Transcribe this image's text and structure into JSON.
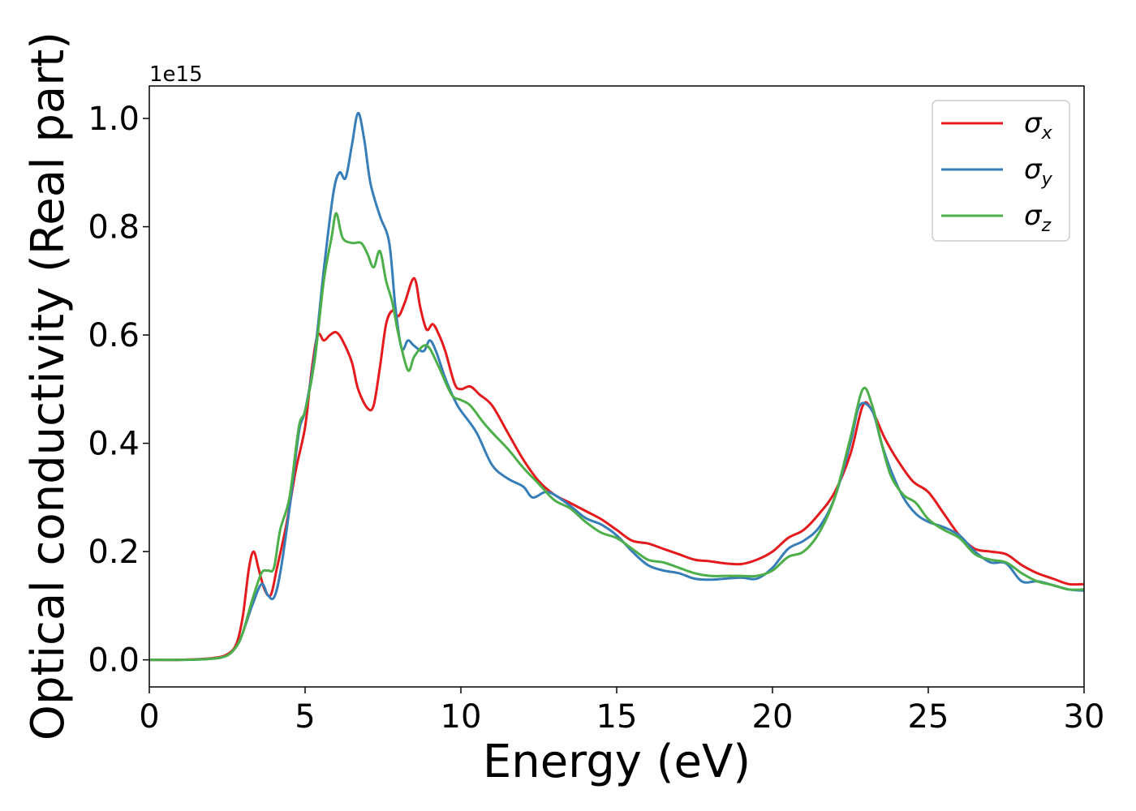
{
  "chart_data": {
    "type": "line",
    "title": "",
    "xlabel": "Energy (eV)",
    "ylabel": "Optical conductivity (Real part)",
    "y_offset_label": "1e15",
    "xlim": [
      0,
      30
    ],
    "ylim": [
      -0.05,
      1.06
    ],
    "xticks": [
      0,
      5,
      10,
      15,
      20,
      25,
      30
    ],
    "xtick_labels": [
      "0",
      "5",
      "10",
      "15",
      "20",
      "25",
      "30"
    ],
    "yticks": [
      0.0,
      0.2,
      0.4,
      0.6,
      0.8,
      1.0
    ],
    "ytick_labels": [
      "0.0",
      "0.2",
      "0.4",
      "0.6",
      "0.8",
      "1.0"
    ],
    "grid": false,
    "legend_position": "top-right",
    "series": [
      {
        "name": "σx",
        "symbol": "σ",
        "subscript": "x",
        "color": "#e41a1c",
        "points": [
          [
            0,
            0
          ],
          [
            1,
            0
          ],
          [
            2,
            0.003
          ],
          [
            2.5,
            0.01
          ],
          [
            2.8,
            0.03
          ],
          [
            3.0,
            0.08
          ],
          [
            3.2,
            0.17
          ],
          [
            3.35,
            0.2
          ],
          [
            3.5,
            0.17
          ],
          [
            3.7,
            0.13
          ],
          [
            3.9,
            0.12
          ],
          [
            4.1,
            0.17
          ],
          [
            4.4,
            0.25
          ],
          [
            4.7,
            0.35
          ],
          [
            5.0,
            0.43
          ],
          [
            5.2,
            0.53
          ],
          [
            5.4,
            0.6
          ],
          [
            5.6,
            0.59
          ],
          [
            5.8,
            0.6
          ],
          [
            6.0,
            0.605
          ],
          [
            6.2,
            0.59
          ],
          [
            6.5,
            0.55
          ],
          [
            6.7,
            0.5
          ],
          [
            7.0,
            0.465
          ],
          [
            7.2,
            0.47
          ],
          [
            7.4,
            0.54
          ],
          [
            7.6,
            0.62
          ],
          [
            7.8,
            0.645
          ],
          [
            8.0,
            0.635
          ],
          [
            8.2,
            0.66
          ],
          [
            8.5,
            0.705
          ],
          [
            8.7,
            0.65
          ],
          [
            8.9,
            0.61
          ],
          [
            9.1,
            0.62
          ],
          [
            9.3,
            0.6
          ],
          [
            9.5,
            0.57
          ],
          [
            9.8,
            0.51
          ],
          [
            10.0,
            0.5
          ],
          [
            10.3,
            0.505
          ],
          [
            10.6,
            0.49
          ],
          [
            11.0,
            0.47
          ],
          [
            11.5,
            0.42
          ],
          [
            12.0,
            0.37
          ],
          [
            12.5,
            0.33
          ],
          [
            13.0,
            0.305
          ],
          [
            13.5,
            0.29
          ],
          [
            14.0,
            0.275
          ],
          [
            14.5,
            0.26
          ],
          [
            15.0,
            0.24
          ],
          [
            15.5,
            0.22
          ],
          [
            16.0,
            0.215
          ],
          [
            16.5,
            0.205
          ],
          [
            17.0,
            0.195
          ],
          [
            17.5,
            0.185
          ],
          [
            18.0,
            0.182
          ],
          [
            18.5,
            0.178
          ],
          [
            19.0,
            0.177
          ],
          [
            19.5,
            0.185
          ],
          [
            20.0,
            0.2
          ],
          [
            20.5,
            0.225
          ],
          [
            21.0,
            0.24
          ],
          [
            21.5,
            0.27
          ],
          [
            22.0,
            0.31
          ],
          [
            22.5,
            0.38
          ],
          [
            22.9,
            0.47
          ],
          [
            23.2,
            0.46
          ],
          [
            23.6,
            0.41
          ],
          [
            24.0,
            0.37
          ],
          [
            24.5,
            0.33
          ],
          [
            25.0,
            0.31
          ],
          [
            25.5,
            0.27
          ],
          [
            26.0,
            0.23
          ],
          [
            26.5,
            0.205
          ],
          [
            27.0,
            0.2
          ],
          [
            27.5,
            0.195
          ],
          [
            28.0,
            0.175
          ],
          [
            28.5,
            0.16
          ],
          [
            29.0,
            0.15
          ],
          [
            29.5,
            0.14
          ],
          [
            30.0,
            0.14
          ]
        ]
      },
      {
        "name": "σy",
        "symbol": "σ",
        "subscript": "y",
        "color": "#377eb8",
        "points": [
          [
            0,
            0
          ],
          [
            1,
            0
          ],
          [
            2,
            0.002
          ],
          [
            2.5,
            0.008
          ],
          [
            2.8,
            0.025
          ],
          [
            3.0,
            0.05
          ],
          [
            3.3,
            0.1
          ],
          [
            3.6,
            0.14
          ],
          [
            3.8,
            0.12
          ],
          [
            4.0,
            0.115
          ],
          [
            4.2,
            0.16
          ],
          [
            4.5,
            0.28
          ],
          [
            4.8,
            0.42
          ],
          [
            5.0,
            0.46
          ],
          [
            5.3,
            0.56
          ],
          [
            5.6,
            0.72
          ],
          [
            5.9,
            0.86
          ],
          [
            6.1,
            0.9
          ],
          [
            6.3,
            0.89
          ],
          [
            6.5,
            0.95
          ],
          [
            6.7,
            1.01
          ],
          [
            6.9,
            0.96
          ],
          [
            7.1,
            0.88
          ],
          [
            7.4,
            0.82
          ],
          [
            7.7,
            0.77
          ],
          [
            7.9,
            0.65
          ],
          [
            8.1,
            0.575
          ],
          [
            8.3,
            0.59
          ],
          [
            8.5,
            0.58
          ],
          [
            8.8,
            0.57
          ],
          [
            9.0,
            0.59
          ],
          [
            9.2,
            0.57
          ],
          [
            9.5,
            0.52
          ],
          [
            9.8,
            0.48
          ],
          [
            10.0,
            0.46
          ],
          [
            10.5,
            0.42
          ],
          [
            11.0,
            0.36
          ],
          [
            11.5,
            0.335
          ],
          [
            12.0,
            0.32
          ],
          [
            12.3,
            0.3
          ],
          [
            12.7,
            0.31
          ],
          [
            13.0,
            0.305
          ],
          [
            13.5,
            0.285
          ],
          [
            14.0,
            0.262
          ],
          [
            14.5,
            0.25
          ],
          [
            15.0,
            0.23
          ],
          [
            15.5,
            0.2
          ],
          [
            16.0,
            0.175
          ],
          [
            16.5,
            0.165
          ],
          [
            17.0,
            0.16
          ],
          [
            17.5,
            0.15
          ],
          [
            18.0,
            0.148
          ],
          [
            18.5,
            0.15
          ],
          [
            19.0,
            0.152
          ],
          [
            19.5,
            0.15
          ],
          [
            20.0,
            0.17
          ],
          [
            20.5,
            0.205
          ],
          [
            21.0,
            0.22
          ],
          [
            21.5,
            0.245
          ],
          [
            22.0,
            0.3
          ],
          [
            22.5,
            0.4
          ],
          [
            22.8,
            0.47
          ],
          [
            23.2,
            0.46
          ],
          [
            23.5,
            0.4
          ],
          [
            23.8,
            0.35
          ],
          [
            24.2,
            0.3
          ],
          [
            24.6,
            0.27
          ],
          [
            25.0,
            0.255
          ],
          [
            25.5,
            0.245
          ],
          [
            26.0,
            0.23
          ],
          [
            26.5,
            0.2
          ],
          [
            27.0,
            0.18
          ],
          [
            27.5,
            0.178
          ],
          [
            28.0,
            0.145
          ],
          [
            28.5,
            0.145
          ],
          [
            29.0,
            0.138
          ],
          [
            29.5,
            0.13
          ],
          [
            30.0,
            0.128
          ]
        ]
      },
      {
        "name": "σz",
        "symbol": "σ",
        "subscript": "z",
        "color": "#4daf4a",
        "points": [
          [
            0,
            0
          ],
          [
            1,
            0
          ],
          [
            2,
            0.002
          ],
          [
            2.5,
            0.008
          ],
          [
            2.8,
            0.025
          ],
          [
            3.0,
            0.05
          ],
          [
            3.3,
            0.11
          ],
          [
            3.6,
            0.16
          ],
          [
            3.8,
            0.165
          ],
          [
            4.0,
            0.17
          ],
          [
            4.2,
            0.24
          ],
          [
            4.5,
            0.3
          ],
          [
            4.8,
            0.43
          ],
          [
            5.0,
            0.46
          ],
          [
            5.3,
            0.55
          ],
          [
            5.6,
            0.7
          ],
          [
            5.85,
            0.78
          ],
          [
            6.0,
            0.825
          ],
          [
            6.2,
            0.78
          ],
          [
            6.5,
            0.77
          ],
          [
            6.8,
            0.77
          ],
          [
            7.0,
            0.75
          ],
          [
            7.2,
            0.725
          ],
          [
            7.4,
            0.755
          ],
          [
            7.6,
            0.7
          ],
          [
            7.8,
            0.66
          ],
          [
            8.0,
            0.6
          ],
          [
            8.3,
            0.535
          ],
          [
            8.5,
            0.56
          ],
          [
            8.8,
            0.58
          ],
          [
            9.0,
            0.575
          ],
          [
            9.3,
            0.54
          ],
          [
            9.7,
            0.49
          ],
          [
            10.0,
            0.48
          ],
          [
            10.3,
            0.47
          ],
          [
            10.7,
            0.44
          ],
          [
            11.0,
            0.42
          ],
          [
            11.5,
            0.39
          ],
          [
            12.0,
            0.355
          ],
          [
            12.5,
            0.325
          ],
          [
            13.0,
            0.295
          ],
          [
            13.5,
            0.28
          ],
          [
            14.0,
            0.255
          ],
          [
            14.5,
            0.235
          ],
          [
            15.0,
            0.225
          ],
          [
            15.5,
            0.205
          ],
          [
            16.0,
            0.185
          ],
          [
            16.5,
            0.18
          ],
          [
            17.0,
            0.17
          ],
          [
            17.5,
            0.16
          ],
          [
            18.0,
            0.155
          ],
          [
            18.5,
            0.155
          ],
          [
            19.0,
            0.155
          ],
          [
            19.5,
            0.155
          ],
          [
            20.0,
            0.165
          ],
          [
            20.5,
            0.19
          ],
          [
            21.0,
            0.2
          ],
          [
            21.5,
            0.235
          ],
          [
            22.0,
            0.3
          ],
          [
            22.5,
            0.41
          ],
          [
            22.9,
            0.5
          ],
          [
            23.2,
            0.47
          ],
          [
            23.5,
            0.4
          ],
          [
            23.8,
            0.34
          ],
          [
            24.2,
            0.305
          ],
          [
            24.6,
            0.29
          ],
          [
            25.0,
            0.26
          ],
          [
            25.5,
            0.24
          ],
          [
            26.0,
            0.225
          ],
          [
            26.5,
            0.195
          ],
          [
            27.0,
            0.185
          ],
          [
            27.5,
            0.18
          ],
          [
            28.0,
            0.16
          ],
          [
            28.5,
            0.145
          ],
          [
            29.0,
            0.138
          ],
          [
            29.5,
            0.13
          ],
          [
            30.0,
            0.13
          ]
        ]
      }
    ]
  }
}
